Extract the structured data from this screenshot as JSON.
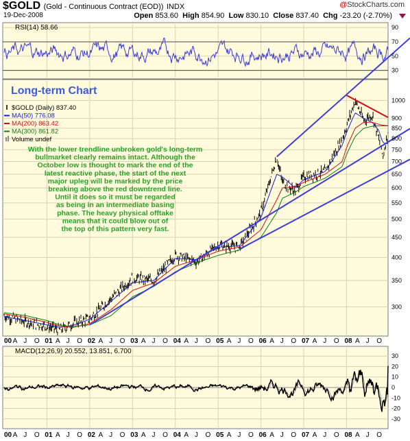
{
  "header": {
    "symbol": "$GOLD",
    "description": "(Gold - Continuous Contract (EOD))",
    "exchange": "INDX",
    "date": "19-Dec-2008",
    "site": "StockCharts.com",
    "site_prefix": "@",
    "open_label": "Open",
    "open": "853.60",
    "high_label": "High",
    "high": "854.90",
    "low_label": "Low",
    "low": "830.10",
    "close_label": "Close",
    "close": "837.40",
    "chg_label": "Chg",
    "chg": "-23.20 (-2.70%)"
  },
  "colors": {
    "panel_bg": "#fffbdc",
    "rsi_line": "#3b3bd6",
    "price_bar": "#000000",
    "ma50": "#1a1ad0",
    "ma200": "#d01010",
    "ma300": "#0f7a0f",
    "trendline": "#3c3cd8",
    "downtrend": "#d01010",
    "annotation": "#2aa02a",
    "title": "#3b5bdb",
    "macd": "#000000",
    "signal": "#a0a0a0"
  },
  "chart_data": [
    {
      "type": "line",
      "panel": "RSI",
      "label": "RSI(14) 58.66",
      "ylim": [
        20,
        95
      ],
      "yticks": [
        30,
        50,
        70,
        90
      ],
      "reference_lines": [
        30,
        70
      ],
      "last_value": 58.66
    },
    {
      "type": "line",
      "panel": "price",
      "scale": "log",
      "title": "Long-term Chart",
      "legend": [
        {
          "name": "$GOLD (Daily) 837.40",
          "kind": "bars"
        },
        {
          "name": "MA(50) 776.08",
          "color": "#1a1ad0"
        },
        {
          "name": "MA(200) 863.42",
          "color": "#d01010"
        },
        {
          "name": "MA(300) 861.82",
          "color": "#0f7a0f"
        },
        {
          "name": "Volume undef",
          "kind": "volume"
        }
      ],
      "ylim": [
        255,
        1120
      ],
      "yticks": [
        300,
        350,
        400,
        450,
        500,
        550,
        600,
        650,
        700,
        750,
        800,
        850,
        900,
        1000
      ],
      "x": [
        2000.0,
        2000.5,
        2001.0,
        2001.3,
        2001.6,
        2002.0,
        2002.5,
        2003.0,
        2003.5,
        2004.0,
        2004.5,
        2005.0,
        2005.5,
        2006.0,
        2006.37,
        2006.5,
        2006.8,
        2007.0,
        2007.5,
        2007.9,
        2008.0,
        2008.2,
        2008.4,
        2008.6,
        2008.75,
        2008.85,
        2008.97
      ],
      "series": [
        {
          "name": "$GOLD",
          "values": [
            285,
            275,
            268,
            262,
            272,
            280,
            315,
            355,
            350,
            405,
            390,
            430,
            425,
            520,
            720,
            620,
            590,
            640,
            660,
            800,
            860,
            1000,
            890,
            920,
            800,
            720,
            837
          ]
        },
        {
          "name": "MA(50)",
          "values": [
            283,
            277,
            270,
            266,
            269,
            279,
            310,
            345,
            350,
            398,
            395,
            425,
            428,
            505,
            650,
            640,
            600,
            630,
            660,
            770,
            830,
            930,
            900,
            880,
            840,
            780,
            776
          ]
        },
        {
          "name": "MA(200)",
          "values": [
            288,
            282,
            274,
            268,
            266,
            272,
            295,
            330,
            345,
            380,
            395,
            415,
            425,
            470,
            560,
            600,
            605,
            620,
            650,
            700,
            760,
            850,
            880,
            880,
            870,
            865,
            863
          ]
        },
        {
          "name": "MA(300)",
          "values": [
            290,
            285,
            277,
            270,
            267,
            270,
            285,
            318,
            338,
            368,
            388,
            405,
            418,
            450,
            520,
            565,
            585,
            605,
            635,
            680,
            730,
            810,
            850,
            860,
            862,
            862,
            862
          ]
        }
      ],
      "trendlines": [
        {
          "name": "upper",
          "x": [
            2006.37,
            2008.0
          ],
          "values": [
            720,
            1030
          ]
        },
        {
          "name": "middle",
          "x": [
            2002.0,
            2008.97
          ],
          "values": [
            270,
            780
          ]
        },
        {
          "name": "lower",
          "x": [
            2005.5,
            2008.97
          ],
          "values": [
            420,
            660
          ]
        },
        {
          "name": "downtrend",
          "x": [
            2008.0,
            2008.97
          ],
          "values": [
            1030,
            905
          ]
        }
      ],
      "annotation": [
        "With the lower trendline unbroken gold's long-term",
        "bullmarket clearly remains intact. Although the",
        "October low is thought to mark the end of the",
        "latest reactive phase, the start of the next",
        "major upleg will be marked by the price",
        "breaking above the red downtrend line.",
        "Until it does so it must be regarded",
        "as being in an intermediate basing",
        "phase. The heavy physical offtake",
        "means that it could blow out of",
        "the top of this pattern very fast."
      ]
    },
    {
      "type": "line",
      "panel": "MACD",
      "label": "MACD(12,26,9) 20.552, 13.851, 6.700",
      "ylim": [
        -38,
        38
      ],
      "yticks": [
        -30,
        -20,
        -10,
        0,
        10,
        20,
        30
      ],
      "macd": 20.552,
      "signal": 13.851,
      "histogram": 6.7
    }
  ],
  "x_axis": {
    "labels": [
      "00",
      "A",
      "J",
      "O",
      "01",
      "A",
      "J",
      "O",
      "02",
      "A",
      "J",
      "O",
      "03",
      "A",
      "J",
      "O",
      "04",
      "A",
      "J",
      "O",
      "05",
      "A",
      "J",
      "O",
      "06",
      "A",
      "J",
      "O",
      "07",
      "A",
      "J",
      "O",
      "08",
      "A",
      "J",
      "O"
    ],
    "bold": [
      "00",
      "01",
      "02",
      "03",
      "04",
      "05",
      "06",
      "07",
      "08"
    ]
  }
}
